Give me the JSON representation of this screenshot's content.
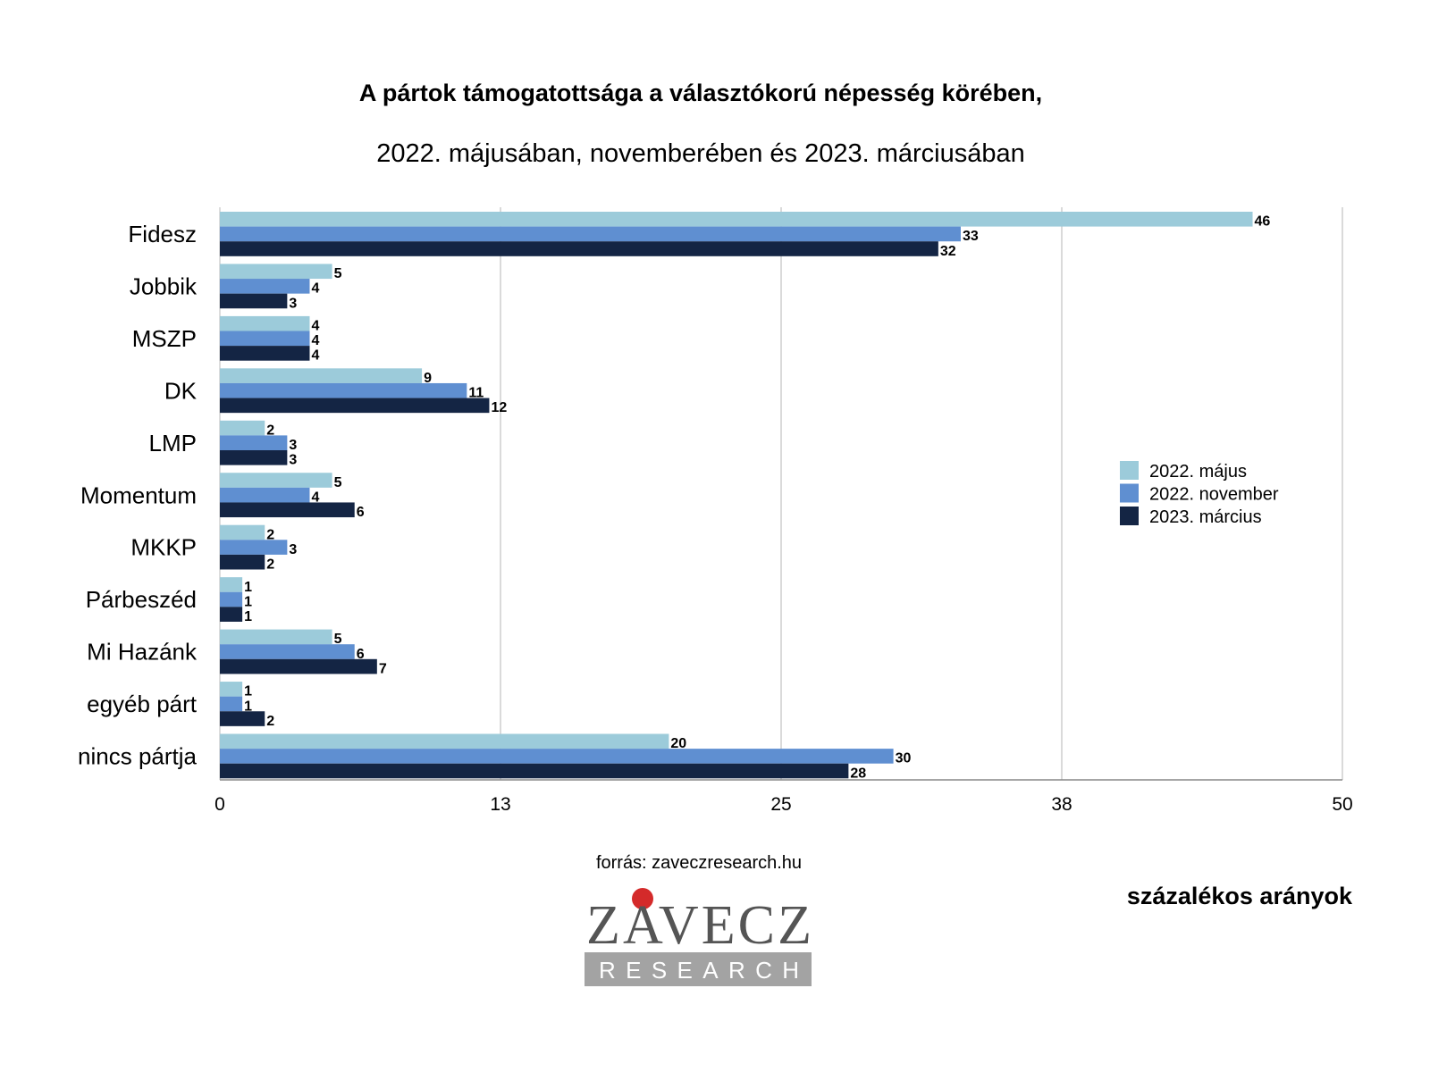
{
  "chart_data": {
    "type": "bar",
    "orientation": "horizontal",
    "title": "A pártok támogatottsága a választókorú népesség körében,",
    "subtitle": "2022. májusában, novemberében és 2023. márciusában",
    "categories": [
      "Fidesz",
      "Jobbik",
      "MSZP",
      "DK",
      "LMP",
      "Momentum",
      "MKKP",
      "Párbeszéd",
      "Mi Hazánk",
      "egyéb párt",
      "nincs pártja"
    ],
    "series": [
      {
        "name": "2022. május",
        "color": "#9ccbda",
        "values": [
          46,
          5,
          4,
          9,
          2,
          5,
          2,
          1,
          5,
          1,
          20
        ]
      },
      {
        "name": "2022. november",
        "color": "#5f8fd1",
        "values": [
          33,
          4,
          4,
          11,
          3,
          4,
          3,
          1,
          6,
          1,
          30
        ]
      },
      {
        "name": "2023. március",
        "color": "#142544",
        "values": [
          32,
          3,
          4,
          12,
          3,
          6,
          2,
          1,
          7,
          2,
          28
        ]
      }
    ],
    "xlim": [
      0,
      50
    ],
    "ticks": [
      0,
      12.5,
      25,
      37.5,
      50
    ],
    "tick_labels": [
      "0",
      "13",
      "25",
      "38",
      "50"
    ],
    "grid": true,
    "legend": "right",
    "xlabel": "",
    "ylabel": ""
  },
  "footer": {
    "source": "forrás: zaveczresearch.hu",
    "unit_note": "százalékos arányok",
    "logo_main": "ZAVECZ",
    "logo_sub": "RESEARCH"
  }
}
